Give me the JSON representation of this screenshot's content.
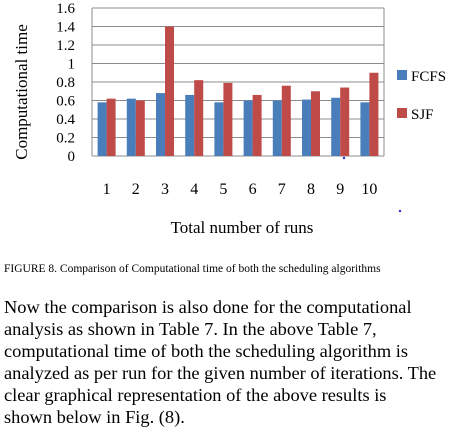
{
  "chart_data": {
    "type": "bar",
    "title": "",
    "xlabel": "Total number of runs",
    "ylabel": "Computational time",
    "categories": [
      "1",
      "2",
      "3",
      "4",
      "5",
      "6",
      "7",
      "8",
      "9",
      "10"
    ],
    "ylim": [
      0,
      1.6
    ],
    "yticks": [
      "0",
      "0.2",
      "0.4",
      "0.6",
      "0.8",
      "1",
      "1.2",
      "1.4",
      "1.6"
    ],
    "grid": true,
    "legend_position": "right",
    "series": [
      {
        "name": "FCFS",
        "color": "#4a7ebb",
        "values": [
          0.58,
          0.62,
          0.68,
          0.66,
          0.58,
          0.6,
          0.6,
          0.61,
          0.63,
          0.58
        ]
      },
      {
        "name": "SJF",
        "color": "#be4b48",
        "values": [
          0.62,
          0.6,
          1.4,
          0.82,
          0.79,
          0.66,
          0.76,
          0.7,
          0.74,
          0.9
        ]
      }
    ]
  },
  "caption": "FIGURE 8. Comparison of Computational time of both the scheduling algorithms",
  "body_lines": [
    "Now the comparison is also done for the computational",
    "analysis as shown in Table 7. In the above Table 7,",
    "computational time of both the scheduling algorithm is",
    "analyzed as per run for the given number of iterations. The",
    "clear graphical representation of the above results is",
    "shown below in Fig. (8)."
  ]
}
